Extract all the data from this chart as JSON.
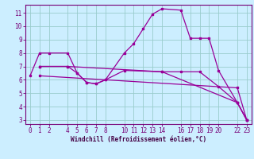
{
  "xlabel": "Windchill (Refroidissement éolien,°C)",
  "background_color": "#cceeff",
  "grid_color": "#99cccc",
  "line_color": "#990099",
  "xlim": [
    -0.5,
    23.5
  ],
  "ylim": [
    2.7,
    11.6
  ],
  "yticks": [
    3,
    4,
    5,
    6,
    7,
    8,
    9,
    10,
    11
  ],
  "xticks": [
    0,
    1,
    2,
    4,
    5,
    6,
    7,
    8,
    10,
    11,
    12,
    13,
    14,
    16,
    17,
    18,
    19,
    20,
    22,
    23
  ],
  "xtick_labels": [
    "0",
    "1",
    "2",
    "4",
    "5",
    "6",
    "7",
    "8",
    "10",
    "11",
    "12",
    "13",
    "14",
    "16",
    "17",
    "18",
    "19",
    "20",
    "22",
    "23"
  ],
  "line1_x": [
    0,
    1,
    2,
    4,
    5,
    6,
    7,
    8,
    10,
    11,
    12,
    13,
    14,
    16,
    17,
    18,
    19,
    20,
    22,
    23
  ],
  "line1_y": [
    6.3,
    8.0,
    8.0,
    8.0,
    6.5,
    5.8,
    5.7,
    6.0,
    8.0,
    8.7,
    9.8,
    10.9,
    11.3,
    11.2,
    9.1,
    9.1,
    9.1,
    6.7,
    4.3,
    3.0
  ],
  "line2_x": [
    1,
    4,
    5,
    6,
    7,
    8,
    10,
    14,
    16,
    18,
    20,
    22,
    23
  ],
  "line2_y": [
    7.0,
    7.0,
    6.5,
    5.8,
    5.7,
    6.0,
    6.7,
    6.6,
    6.6,
    6.6,
    5.5,
    4.3,
    3.0
  ],
  "line3_x": [
    1,
    4,
    14,
    22,
    23
  ],
  "line3_y": [
    7.0,
    7.0,
    6.6,
    4.3,
    3.0
  ],
  "line4_x": [
    1,
    22,
    23
  ],
  "line4_y": [
    6.3,
    5.4,
    3.0
  ],
  "tick_fontsize": 5.5,
  "xlabel_fontsize": 5.5,
  "marker_size": 2.0,
  "line_width": 0.9
}
